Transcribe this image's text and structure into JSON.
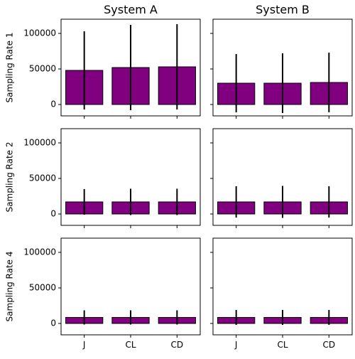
{
  "chart_data": {
    "type": "bar",
    "layout": "grid",
    "columns": [
      "System A",
      "System B"
    ],
    "rows": [
      "Sampling Rate 1",
      "Sampling Rate 2",
      "Sampling Rate 4"
    ],
    "categories": [
      "J",
      "CL",
      "CD"
    ],
    "ylim": [
      -16000,
      120000
    ],
    "yticks": [
      0,
      50000,
      100000
    ],
    "shared_y": true,
    "bar_color": "#800080",
    "panels": [
      {
        "row": "Sampling Rate 1",
        "column": "System A",
        "values": [
          48000,
          52000,
          53000
        ],
        "errors": [
          55000,
          60000,
          60000
        ]
      },
      {
        "row": "Sampling Rate 1",
        "column": "System B",
        "values": [
          30000,
          30000,
          31000
        ],
        "errors": [
          41000,
          42000,
          42000
        ]
      },
      {
        "row": "Sampling Rate 2",
        "column": "System A",
        "values": [
          17000,
          17000,
          17000
        ],
        "errors": [
          18000,
          18500,
          18500
        ]
      },
      {
        "row": "Sampling Rate 2",
        "column": "System B",
        "values": [
          17000,
          17000,
          17000
        ],
        "errors": [
          22000,
          22500,
          22000
        ]
      },
      {
        "row": "Sampling Rate 4",
        "column": "System A",
        "values": [
          8500,
          8500,
          8500
        ],
        "errors": [
          10000,
          10000,
          10000
        ]
      },
      {
        "row": "Sampling Rate 4",
        "column": "System B",
        "values": [
          8500,
          8500,
          8500
        ],
        "errors": [
          10500,
          10500,
          10500
        ]
      }
    ]
  }
}
